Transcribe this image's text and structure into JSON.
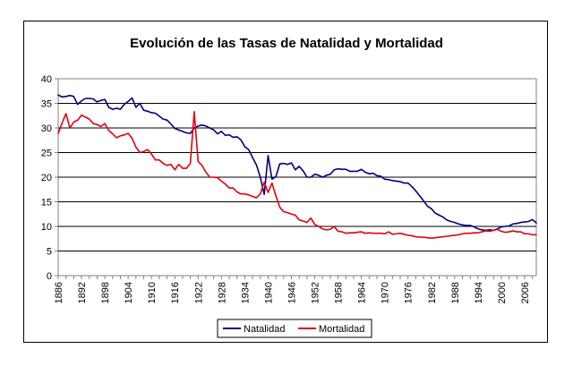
{
  "chart_data": {
    "type": "line",
    "title": "Evolución de las Tasas de Natalidad y Mortalidad",
    "xlabel": "",
    "ylabel": "",
    "xlim": [
      1886,
      2009
    ],
    "ylim": [
      0,
      40
    ],
    "y_ticks": [
      0,
      5,
      10,
      15,
      20,
      25,
      30,
      35,
      40
    ],
    "x_tick_labels": [
      "1886",
      "1892",
      "1898",
      "1904",
      "1910",
      "1916",
      "1922",
      "1928",
      "1934",
      "1940",
      "1946",
      "1952",
      "1958",
      "1964",
      "1970",
      "1976",
      "1982",
      "1988",
      "1994",
      "2000",
      "2006"
    ],
    "x_tick_step": 2,
    "grid": "horizontal",
    "legend_position": "bottom",
    "series": [
      {
        "name": "Natalidad",
        "color": "#00007f",
        "points": [
          [
            1886,
            36.7
          ],
          [
            1887,
            36.3
          ],
          [
            1888,
            36.4
          ],
          [
            1889,
            36.6
          ],
          [
            1890,
            36.4
          ],
          [
            1891,
            34.8
          ],
          [
            1892,
            35.5
          ],
          [
            1893,
            36.0
          ],
          [
            1894,
            36.0
          ],
          [
            1895,
            35.9
          ],
          [
            1896,
            35.3
          ],
          [
            1897,
            35.6
          ],
          [
            1898,
            35.8
          ],
          [
            1899,
            34.2
          ],
          [
            1900,
            33.8
          ],
          [
            1901,
            34.0
          ],
          [
            1902,
            33.8
          ],
          [
            1903,
            34.8
          ],
          [
            1904,
            35.4
          ],
          [
            1905,
            36.1
          ],
          [
            1906,
            34.2
          ],
          [
            1907,
            35.0
          ],
          [
            1908,
            33.6
          ],
          [
            1909,
            33.4
          ],
          [
            1910,
            33.1
          ],
          [
            1911,
            33.0
          ],
          [
            1912,
            32.4
          ],
          [
            1913,
            31.8
          ],
          [
            1914,
            31.6
          ],
          [
            1915,
            30.8
          ],
          [
            1916,
            29.9
          ],
          [
            1917,
            29.6
          ],
          [
            1918,
            29.3
          ],
          [
            1919,
            29.0
          ],
          [
            1920,
            28.9
          ],
          [
            1921,
            30.0
          ],
          [
            1922,
            30.4
          ],
          [
            1923,
            30.6
          ],
          [
            1924,
            30.4
          ],
          [
            1925,
            30.0
          ],
          [
            1926,
            29.6
          ],
          [
            1927,
            28.8
          ],
          [
            1928,
            29.3
          ],
          [
            1929,
            28.5
          ],
          [
            1930,
            28.6
          ],
          [
            1931,
            28.1
          ],
          [
            1932,
            28.2
          ],
          [
            1933,
            27.6
          ],
          [
            1934,
            26.2
          ],
          [
            1935,
            25.6
          ],
          [
            1936,
            24.0
          ],
          [
            1937,
            22.5
          ],
          [
            1938,
            20.0
          ],
          [
            1939,
            16.5
          ],
          [
            1940,
            24.4
          ],
          [
            1941,
            19.6
          ],
          [
            1942,
            20.1
          ],
          [
            1943,
            22.7
          ],
          [
            1944,
            22.8
          ],
          [
            1945,
            22.6
          ],
          [
            1946,
            22.9
          ],
          [
            1947,
            21.5
          ],
          [
            1948,
            22.2
          ],
          [
            1949,
            21.3
          ],
          [
            1950,
            20.0
          ],
          [
            1951,
            20.0
          ],
          [
            1952,
            20.6
          ],
          [
            1953,
            20.4
          ],
          [
            1954,
            20.0
          ],
          [
            1955,
            20.4
          ],
          [
            1956,
            20.6
          ],
          [
            1957,
            21.5
          ],
          [
            1958,
            21.7
          ],
          [
            1959,
            21.6
          ],
          [
            1960,
            21.6
          ],
          [
            1961,
            21.2
          ],
          [
            1962,
            21.2
          ],
          [
            1963,
            21.2
          ],
          [
            1964,
            21.6
          ],
          [
            1965,
            21.0
          ],
          [
            1966,
            20.7
          ],
          [
            1967,
            20.8
          ],
          [
            1968,
            20.3
          ],
          [
            1969,
            20.2
          ],
          [
            1970,
            19.6
          ],
          [
            1971,
            19.5
          ],
          [
            1972,
            19.3
          ],
          [
            1973,
            19.2
          ],
          [
            1974,
            19.1
          ],
          [
            1975,
            18.8
          ],
          [
            1976,
            18.8
          ],
          [
            1977,
            18.1
          ],
          [
            1978,
            17.2
          ],
          [
            1979,
            16.2
          ],
          [
            1980,
            15.2
          ],
          [
            1981,
            14.1
          ],
          [
            1982,
            13.6
          ],
          [
            1983,
            12.7
          ],
          [
            1984,
            12.3
          ],
          [
            1985,
            11.9
          ],
          [
            1986,
            11.3
          ],
          [
            1987,
            11.0
          ],
          [
            1988,
            10.8
          ],
          [
            1989,
            10.5
          ],
          [
            1990,
            10.3
          ],
          [
            1991,
            10.2
          ],
          [
            1992,
            10.2
          ],
          [
            1993,
            9.9
          ],
          [
            1994,
            9.5
          ],
          [
            1995,
            9.3
          ],
          [
            1996,
            9.2
          ],
          [
            1997,
            9.3
          ],
          [
            1998,
            9.2
          ],
          [
            1999,
            9.5
          ],
          [
            2000,
            9.9
          ],
          [
            2001,
            10.0
          ],
          [
            2002,
            10.1
          ],
          [
            2003,
            10.5
          ],
          [
            2004,
            10.6
          ],
          [
            2005,
            10.8
          ],
          [
            2006,
            10.9
          ],
          [
            2007,
            11.0
          ],
          [
            2008,
            11.4
          ],
          [
            2009,
            10.7
          ]
        ]
      },
      {
        "name": "Mortalidad",
        "color": "#e3000f",
        "points": [
          [
            1886,
            28.9
          ],
          [
            1887,
            31.0
          ],
          [
            1888,
            32.9
          ],
          [
            1889,
            30.0
          ],
          [
            1890,
            31.2
          ],
          [
            1891,
            31.6
          ],
          [
            1892,
            32.6
          ],
          [
            1893,
            32.2
          ],
          [
            1894,
            31.8
          ],
          [
            1895,
            30.9
          ],
          [
            1896,
            30.7
          ],
          [
            1897,
            30.3
          ],
          [
            1898,
            30.9
          ],
          [
            1899,
            29.5
          ],
          [
            1900,
            28.8
          ],
          [
            1901,
            28.0
          ],
          [
            1902,
            28.4
          ],
          [
            1903,
            28.6
          ],
          [
            1904,
            28.9
          ],
          [
            1905,
            27.9
          ],
          [
            1906,
            26.1
          ],
          [
            1907,
            25.0
          ],
          [
            1908,
            25.2
          ],
          [
            1909,
            25.6
          ],
          [
            1910,
            24.7
          ],
          [
            1911,
            23.5
          ],
          [
            1912,
            23.5
          ],
          [
            1913,
            22.8
          ],
          [
            1914,
            22.4
          ],
          [
            1915,
            22.6
          ],
          [
            1916,
            21.5
          ],
          [
            1917,
            22.6
          ],
          [
            1918,
            21.8
          ],
          [
            1919,
            21.8
          ],
          [
            1920,
            22.8
          ],
          [
            1921,
            33.3
          ],
          [
            1922,
            23.2
          ],
          [
            1923,
            22.4
          ],
          [
            1924,
            21.0
          ],
          [
            1925,
            20.0
          ],
          [
            1926,
            20.0
          ],
          [
            1927,
            19.9
          ],
          [
            1928,
            19.2
          ],
          [
            1929,
            18.6
          ],
          [
            1930,
            17.8
          ],
          [
            1931,
            17.8
          ],
          [
            1932,
            17.0
          ],
          [
            1933,
            16.6
          ],
          [
            1934,
            16.6
          ],
          [
            1935,
            16.4
          ],
          [
            1936,
            16.1
          ],
          [
            1937,
            15.8
          ],
          [
            1938,
            16.6
          ],
          [
            1939,
            19.0
          ],
          [
            1940,
            16.9
          ],
          [
            1941,
            18.8
          ],
          [
            1942,
            16.2
          ],
          [
            1943,
            13.9
          ],
          [
            1944,
            13.0
          ],
          [
            1945,
            12.8
          ],
          [
            1946,
            12.5
          ],
          [
            1947,
            12.3
          ],
          [
            1948,
            11.3
          ],
          [
            1949,
            11.1
          ],
          [
            1950,
            10.8
          ],
          [
            1951,
            11.7
          ],
          [
            1952,
            10.4
          ],
          [
            1953,
            10.0
          ],
          [
            1954,
            9.5
          ],
          [
            1955,
            9.3
          ],
          [
            1956,
            9.4
          ],
          [
            1957,
            10.0
          ],
          [
            1958,
            9.0
          ],
          [
            1959,
            8.9
          ],
          [
            1960,
            8.6
          ],
          [
            1961,
            8.7
          ],
          [
            1962,
            8.7
          ],
          [
            1963,
            8.8
          ],
          [
            1964,
            8.9
          ],
          [
            1965,
            8.6
          ],
          [
            1966,
            8.7
          ],
          [
            1967,
            8.6
          ],
          [
            1968,
            8.6
          ],
          [
            1969,
            8.6
          ],
          [
            1970,
            8.5
          ],
          [
            1971,
            8.9
          ],
          [
            1972,
            8.4
          ],
          [
            1973,
            8.5
          ],
          [
            1974,
            8.6
          ],
          [
            1975,
            8.4
          ],
          [
            1976,
            8.2
          ],
          [
            1977,
            8.1
          ],
          [
            1978,
            7.9
          ],
          [
            1979,
            7.8
          ],
          [
            1980,
            7.8
          ],
          [
            1981,
            7.7
          ],
          [
            1982,
            7.6
          ],
          [
            1983,
            7.7
          ],
          [
            1984,
            7.8
          ],
          [
            1985,
            7.9
          ],
          [
            1986,
            8.0
          ],
          [
            1987,
            8.1
          ],
          [
            1988,
            8.2
          ],
          [
            1989,
            8.3
          ],
          [
            1990,
            8.5
          ],
          [
            1991,
            8.6
          ],
          [
            1992,
            8.6
          ],
          [
            1993,
            8.7
          ],
          [
            1994,
            8.7
          ],
          [
            1995,
            8.9
          ],
          [
            1996,
            9.1
          ],
          [
            1997,
            9.0
          ],
          [
            1998,
            9.2
          ],
          [
            1999,
            9.4
          ],
          [
            2000,
            9.0
          ],
          [
            2001,
            8.8
          ],
          [
            2002,
            8.9
          ],
          [
            2003,
            9.1
          ],
          [
            2004,
            8.9
          ],
          [
            2005,
            8.9
          ],
          [
            2006,
            8.5
          ],
          [
            2007,
            8.5
          ],
          [
            2008,
            8.3
          ],
          [
            2009,
            8.3
          ]
        ]
      }
    ]
  }
}
